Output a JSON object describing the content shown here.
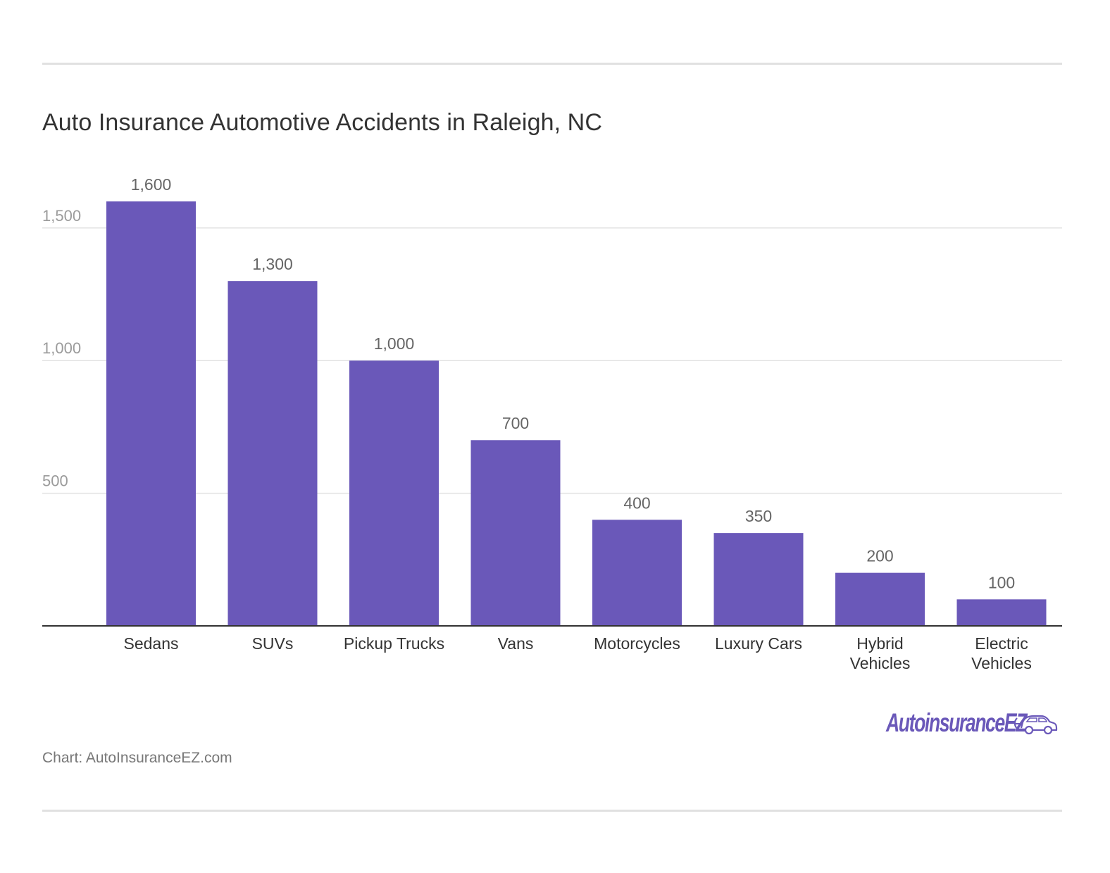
{
  "title": "Auto Insurance Automotive Accidents in Raleigh, NC",
  "source": "Chart: AutoInsuranceEZ.com",
  "logo": {
    "text": "AutoinsuranceEZ",
    "icon": "car-icon"
  },
  "colors": {
    "bar": "#6a58b9",
    "grid": "#e2e2e2",
    "axis": "#333333"
  },
  "chart_data": {
    "type": "bar",
    "title": "Auto Insurance Automotive Accidents in Raleigh, NC",
    "xlabel": "",
    "ylabel": "",
    "categories": [
      [
        "Sedans"
      ],
      [
        "SUVs"
      ],
      [
        "Pickup Trucks"
      ],
      [
        "Vans"
      ],
      [
        "Motorcycles"
      ],
      [
        "Luxury Cars"
      ],
      [
        "Hybrid",
        "Vehicles"
      ],
      [
        "Electric",
        "Vehicles"
      ]
    ],
    "values": [
      1600,
      1300,
      1000,
      700,
      400,
      350,
      200,
      100
    ],
    "value_labels": [
      "1,600",
      "1,300",
      "1,000",
      "700",
      "400",
      "350",
      "200",
      "100"
    ],
    "yticks": [
      500,
      1000,
      1500
    ],
    "ytick_labels": [
      "500",
      "1,000",
      "1,500"
    ],
    "ylim": [
      0,
      1600
    ],
    "grid": true,
    "legend": "none"
  }
}
